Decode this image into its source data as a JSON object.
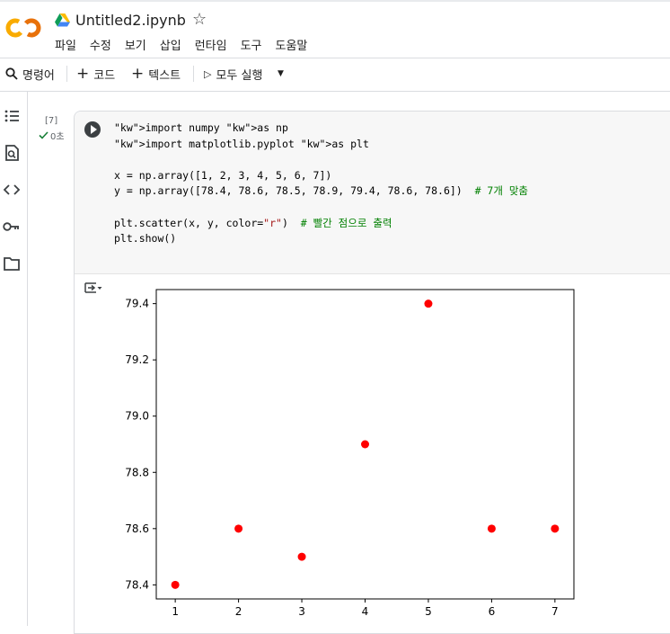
{
  "header": {
    "title": "Untitled2.ipynb",
    "menu": [
      "파일",
      "수정",
      "보기",
      "삽입",
      "런타임",
      "도구",
      "도움말"
    ]
  },
  "toolbar": {
    "commands": "명령어",
    "code": "코드",
    "text": "텍스트",
    "run_all": "모두 실행"
  },
  "cell": {
    "exec_count": "[7]",
    "exec_time": "0초",
    "code_lines": [
      "import numpy as np",
      "import matplotlib.pyplot as plt",
      "",
      "x = np.array([1, 2, 3, 4, 5, 6, 7])",
      "y = np.array([78.4, 78.6, 78.5, 78.9, 79.4, 78.6, 78.6])  # 7개 맞춤",
      "",
      "plt.scatter(x, y, color=\"r\")  # 빨간 점으로 출력",
      "plt.show()"
    ]
  },
  "chart_data": {
    "type": "scatter",
    "x": [
      1,
      2,
      3,
      4,
      5,
      6,
      7
    ],
    "y": [
      78.4,
      78.6,
      78.5,
      78.9,
      79.4,
      78.6,
      78.6
    ],
    "color": "#ff0000",
    "xticks": [
      "1",
      "2",
      "3",
      "4",
      "5",
      "6",
      "7"
    ],
    "yticks": [
      "78.4",
      "78.6",
      "78.8",
      "79.0",
      "79.2",
      "79.4"
    ],
    "xlim": [
      0.7,
      7.3
    ],
    "ylim": [
      78.35,
      79.45
    ],
    "grid": false
  },
  "colors": {
    "accent_orange": "#f9ab00",
    "accent_orange_dark": "#e8710a",
    "status_green": "#188038"
  }
}
